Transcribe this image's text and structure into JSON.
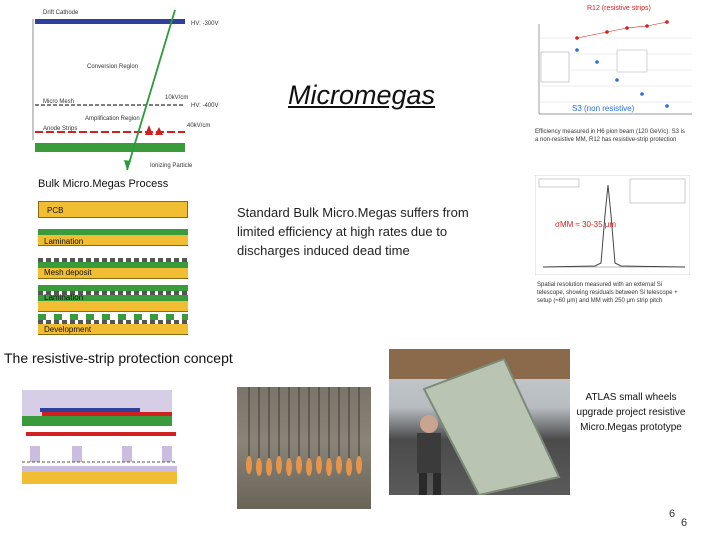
{
  "title": "Micromegas",
  "body_text": "Standard Bulk Micro.Megas suffers from limited efficiency at high rates due to discharges induced dead time",
  "bulk_process": {
    "title": "Bulk Micro.Megas Process",
    "steps": [
      "PCB",
      "Lamination",
      "Mesh deposit",
      "Lamination",
      "Development"
    ]
  },
  "resistive_concept_title": "The resistive-strip protection concept",
  "atlas_caption": "ATLAS small wheels upgrade project resistive Micro.Megas prototype",
  "slide_number": "6",
  "slide_number_echo": "6",
  "efficiency_plot": {
    "label_r12": "R12 (resistive strips)",
    "label_s3": "S3 (non resistive)",
    "caption": "Efficiency measured in H6 pion beam (120 GeV/c): S3 is a non-resistive MM, R12 has resistive-strip protection"
  },
  "resolution_plot": {
    "label": "σMM ≈ 30-35 μm",
    "caption": "Spatial resolution measured with an external Si telescope, showing residuals between Si telescope + setup (≈60 μm) and MM with 250 μm strip pitch"
  },
  "detector_diagram": {
    "labels": [
      "Drift Cathode",
      "Conversion Region",
      "Micro Mesh",
      "Amplification Region",
      "Anode Strips",
      "Ionizing Particle"
    ],
    "voltages": [
      "HV: -300V",
      "10kV/cm",
      "HV: -400V",
      "40kV/cm"
    ]
  },
  "colors": {
    "pcb": "#f0bd33",
    "lamination": "#3a9b3a",
    "r12_label": "#d62020",
    "s3_label": "#2b6fd6"
  }
}
